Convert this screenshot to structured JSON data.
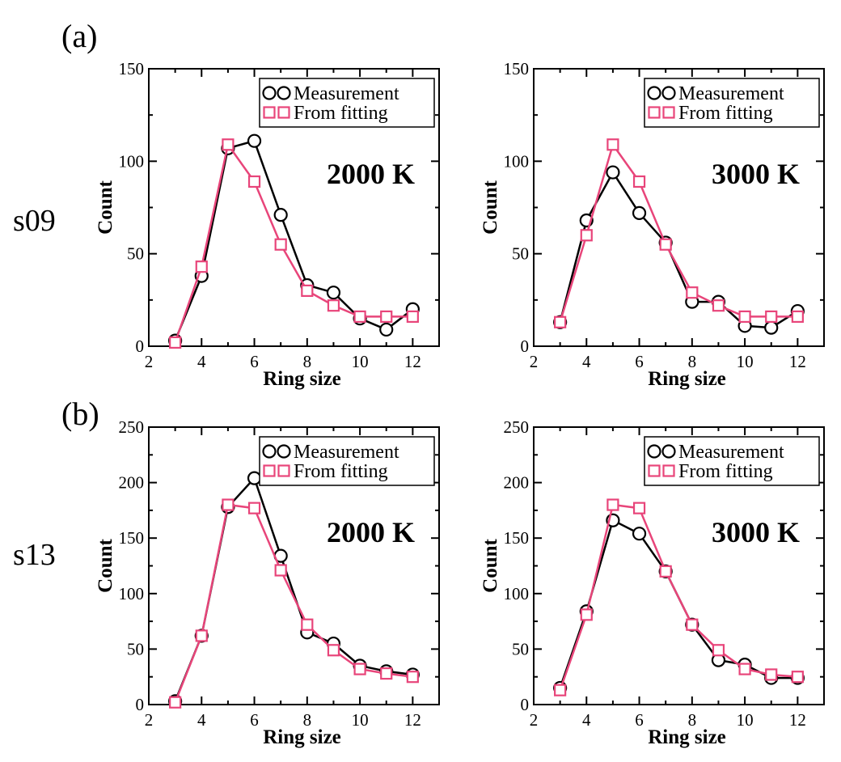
{
  "panel_labels": [
    "(a)",
    "(b)"
  ],
  "row_labels": [
    "s09",
    "s13"
  ],
  "legend": {
    "measurement": "Measurement",
    "fitting": "From fitting"
  },
  "colors": {
    "measurement": "#000000",
    "fitting": "#e8457a"
  },
  "chart_data": [
    {
      "type": "line",
      "title": "2000 K",
      "xlabel": "Ring size",
      "ylabel": "Count",
      "xlim": [
        2,
        13
      ],
      "ylim": [
        0,
        150
      ],
      "xticks": [
        2,
        4,
        6,
        8,
        10,
        12
      ],
      "yticks": [
        0,
        50,
        100,
        150
      ],
      "x": [
        3,
        4,
        5,
        6,
        7,
        8,
        9,
        10,
        11,
        12
      ],
      "series": [
        {
          "name": "Measurement",
          "marker": "circle",
          "values": [
            3,
            38,
            107,
            111,
            71,
            33,
            29,
            15,
            9,
            20
          ]
        },
        {
          "name": "From fitting",
          "marker": "square",
          "values": [
            2,
            43,
            109,
            89,
            55,
            30,
            22,
            16,
            16,
            16
          ]
        }
      ]
    },
    {
      "type": "line",
      "title": "3000 K",
      "xlabel": "Ring size",
      "ylabel": "Count",
      "xlim": [
        2,
        13
      ],
      "ylim": [
        0,
        150
      ],
      "xticks": [
        2,
        4,
        6,
        8,
        10,
        12
      ],
      "yticks": [
        0,
        50,
        100,
        150
      ],
      "x": [
        3,
        4,
        5,
        6,
        7,
        8,
        9,
        10,
        11,
        12
      ],
      "series": [
        {
          "name": "Measurement",
          "marker": "circle",
          "values": [
            13,
            68,
            94,
            72,
            56,
            24,
            24,
            11,
            10,
            19
          ]
        },
        {
          "name": "From fitting",
          "marker": "square",
          "values": [
            13,
            60,
            109,
            89,
            55,
            29,
            22,
            16,
            16,
            16
          ]
        }
      ]
    },
    {
      "type": "line",
      "title": "2000 K",
      "xlabel": "Ring size",
      "ylabel": "Count",
      "xlim": [
        2,
        13
      ],
      "ylim": [
        0,
        250
      ],
      "xticks": [
        2,
        4,
        6,
        8,
        10,
        12
      ],
      "yticks": [
        0,
        50,
        100,
        150,
        200,
        250
      ],
      "x": [
        3,
        4,
        5,
        6,
        7,
        8,
        9,
        10,
        11,
        12
      ],
      "series": [
        {
          "name": "Measurement",
          "marker": "circle",
          "values": [
            3,
            62,
            178,
            204,
            134,
            65,
            55,
            35,
            30,
            27
          ]
        },
        {
          "name": "From fitting",
          "marker": "square",
          "values": [
            2,
            62,
            180,
            177,
            121,
            72,
            49,
            32,
            28,
            25
          ]
        }
      ]
    },
    {
      "type": "line",
      "title": "3000 K",
      "xlabel": "Ring size",
      "ylabel": "Count",
      "xlim": [
        2,
        13
      ],
      "ylim": [
        0,
        250
      ],
      "xticks": [
        2,
        4,
        6,
        8,
        10,
        12
      ],
      "yticks": [
        0,
        50,
        100,
        150,
        200,
        250
      ],
      "x": [
        3,
        4,
        5,
        6,
        7,
        8,
        9,
        10,
        11,
        12
      ],
      "series": [
        {
          "name": "Measurement",
          "marker": "circle",
          "values": [
            15,
            84,
            166,
            154,
            120,
            72,
            40,
            36,
            24,
            24
          ]
        },
        {
          "name": "From fitting",
          "marker": "square",
          "values": [
            13,
            81,
            180,
            177,
            120,
            72,
            49,
            32,
            27,
            25
          ]
        }
      ]
    }
  ]
}
